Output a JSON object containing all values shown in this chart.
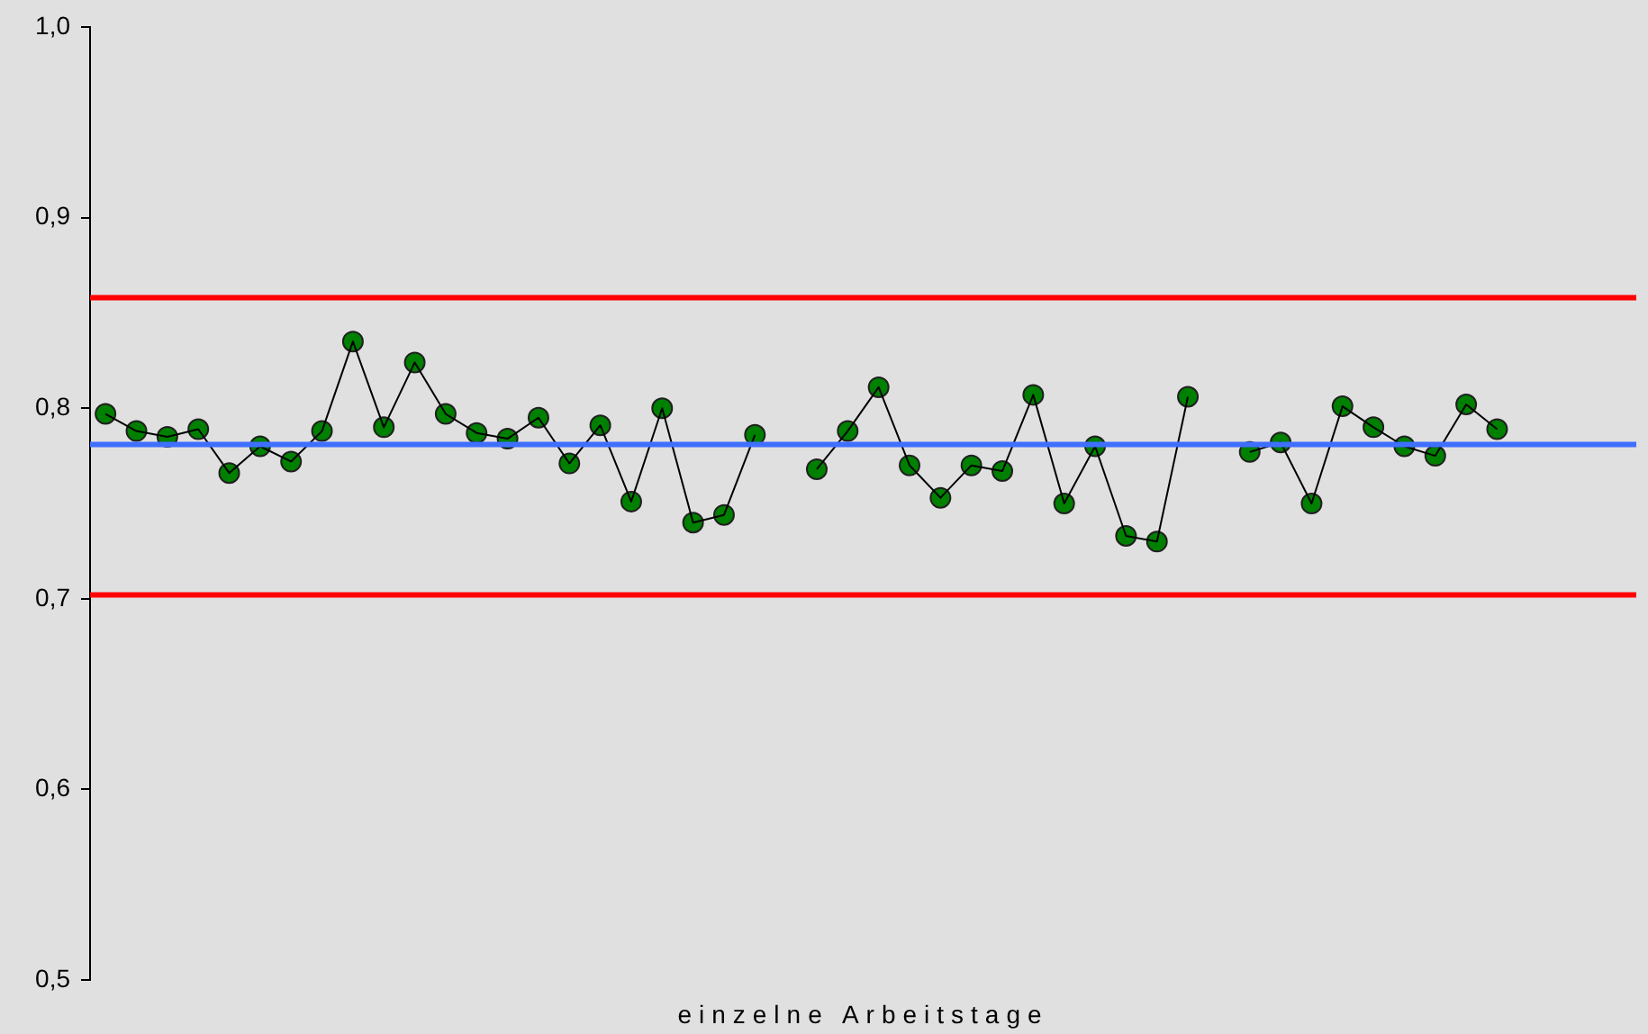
{
  "chart_data": {
    "type": "line",
    "xlabel": "einzelne Arbeitstage",
    "categories": [
      null,
      null,
      null,
      null,
      null,
      null,
      null,
      null,
      null,
      null,
      null,
      null,
      null,
      null,
      null,
      null,
      null,
      null,
      null,
      null,
      null,
      null,
      null,
      null,
      null,
      null,
      null,
      null,
      null,
      null,
      null,
      null,
      null,
      null,
      null,
      null,
      null,
      null,
      null,
      null,
      null,
      null,
      null,
      null,
      null,
      null,
      null,
      null,
      null,
      null
    ],
    "series": [
      {
        "marker": "none",
        "color": "#000000",
        "values": [
          0.797,
          0.788,
          0.785,
          0.789,
          0.766,
          0.78,
          0.772,
          0.788,
          0.835,
          0.79,
          0.824,
          0.797,
          0.787,
          0.784,
          0.795,
          0.771,
          0.791,
          0.751,
          0.8,
          0.74,
          0.744,
          0.786,
          null,
          0.768,
          0.788,
          0.811,
          0.77,
          0.753,
          0.77,
          0.767,
          0.807,
          0.75,
          0.78,
          0.733,
          0.73,
          0.806,
          null,
          0.777,
          0.782,
          0.75,
          0.801,
          0.79,
          0.78,
          0.775,
          0.802,
          0.789,
          null,
          null,
          null,
          null
        ]
      },
      {
        "type": "scatter",
        "marker": "circle",
        "color": "#008000",
        "values": [
          0.797,
          0.788,
          0.785,
          0.789,
          0.766,
          0.78,
          0.772,
          0.788,
          0.835,
          0.79,
          0.824,
          0.797,
          0.787,
          0.784,
          0.795,
          0.771,
          0.791,
          0.751,
          0.8,
          0.74,
          0.744,
          0.786,
          null,
          0.768,
          0.788,
          0.811,
          0.77,
          0.753,
          0.77,
          0.767,
          0.807,
          0.75,
          0.78,
          0.733,
          0.73,
          0.806,
          null,
          0.777,
          0.782,
          0.75,
          0.801,
          0.79,
          0.78,
          0.775,
          0.802,
          0.789,
          null,
          null,
          null,
          null
        ]
      }
    ],
    "ylim": [
      0.5,
      1
    ],
    "yticks": [
      {
        "value": 0.5,
        "label": "0,5"
      },
      {
        "value": 0.6,
        "label": "0,6"
      },
      {
        "value": 0.7,
        "label": "0,7"
      },
      {
        "value": 0.8,
        "label": "0,8"
      },
      {
        "value": 0.9,
        "label": "0,9"
      },
      {
        "value": 1,
        "label": "1,0"
      }
    ],
    "ref_lines": [
      {
        "axis": "y",
        "value": 0.858,
        "color": "#ff0000"
      },
      {
        "axis": "y",
        "value": 0.702,
        "color": "#ff0000"
      },
      {
        "axis": "y",
        "value": 0.781,
        "color": "#3f6fff"
      }
    ],
    "line_style": "solid",
    "grid": false,
    "legend": false
  }
}
